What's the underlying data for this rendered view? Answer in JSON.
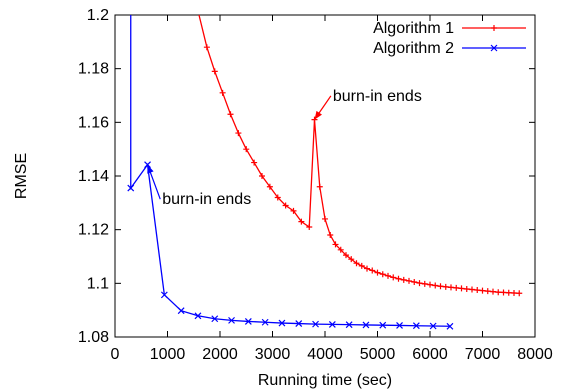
{
  "chart_data": {
    "type": "line",
    "xlabel": "Running time (sec)",
    "ylabel": "RMSE",
    "xlim": [
      0,
      8000
    ],
    "ylim": [
      1.08,
      1.2
    ],
    "xticks": [
      0,
      1000,
      2000,
      3000,
      4000,
      5000,
      6000,
      7000,
      8000
    ],
    "xtick_labels": [
      "0",
      "1000",
      "2000",
      "3000",
      "4000",
      "5000",
      "6000",
      "7000",
      "8000"
    ],
    "yticks": [
      1.08,
      1.1,
      1.12,
      1.14,
      1.16,
      1.18,
      1.2
    ],
    "ytick_labels": [
      "1.08",
      "1.1",
      "1.12",
      "1.14",
      "1.16",
      "1.18",
      "1.2"
    ],
    "grid": false,
    "legend_position": "top-right",
    "series": [
      {
        "name": "Algorithm 1",
        "color": "#ff0000",
        "marker": "plus",
        "x": [
          1600,
          1750,
          1900,
          2050,
          2200,
          2350,
          2500,
          2650,
          2800,
          2950,
          3100,
          3250,
          3400,
          3550,
          3700,
          3800,
          3900,
          4000,
          4100,
          4200,
          4300,
          4400,
          4500,
          4600,
          4700,
          4800,
          4900,
          5000,
          5100,
          5200,
          5300,
          5400,
          5500,
          5600,
          5700,
          5800,
          5900,
          6000,
          6100,
          6200,
          6300,
          6400,
          6500,
          6600,
          6700,
          6800,
          6900,
          7000,
          7100,
          7200,
          7300,
          7400,
          7500,
          7600,
          7700
        ],
        "y": [
          1.2,
          1.188,
          1.179,
          1.171,
          1.163,
          1.156,
          1.15,
          1.145,
          1.14,
          1.136,
          1.132,
          1.129,
          1.127,
          1.123,
          1.121,
          1.161,
          1.136,
          1.124,
          1.118,
          1.1145,
          1.1125,
          1.1105,
          1.109,
          1.1075,
          1.1065,
          1.1055,
          1.1048,
          1.104,
          1.1034,
          1.1028,
          1.1022,
          1.1017,
          1.1013,
          1.1009,
          1.1005,
          1.1001,
          1.0998,
          1.0995,
          1.0992,
          1.0989,
          1.0987,
          1.0985,
          1.0983,
          1.0981,
          1.0979,
          1.0977,
          1.0975,
          1.0973,
          1.0971,
          1.0969,
          1.0967,
          1.0966,
          1.0965,
          1.0964,
          1.0963
        ]
      },
      {
        "name": "Algorithm 2",
        "color": "#0000ff",
        "marker": "cross",
        "x": [
          300,
          300,
          620,
          940,
          1260,
          1580,
          1900,
          2220,
          2540,
          2860,
          3180,
          3500,
          3820,
          4140,
          4460,
          4780,
          5100,
          5420,
          5740,
          6060,
          6380
        ],
        "y": [
          1.2,
          1.1355,
          1.1442,
          1.0957,
          1.0898,
          1.0879,
          1.0868,
          1.0862,
          1.0858,
          1.0855,
          1.0852,
          1.085,
          1.0848,
          1.0847,
          1.0846,
          1.0845,
          1.0844,
          1.0843,
          1.0842,
          1.0841,
          1.084
        ]
      }
    ],
    "annotations": [
      {
        "text": "burn-in ends",
        "target_x": 3800,
        "target_y": 1.161,
        "text_x": 4150,
        "text_y": 1.168
      },
      {
        "text": "burn-in ends",
        "target_x": 620,
        "target_y": 1.1442,
        "text_x": 900,
        "text_y": 1.1295
      }
    ]
  }
}
